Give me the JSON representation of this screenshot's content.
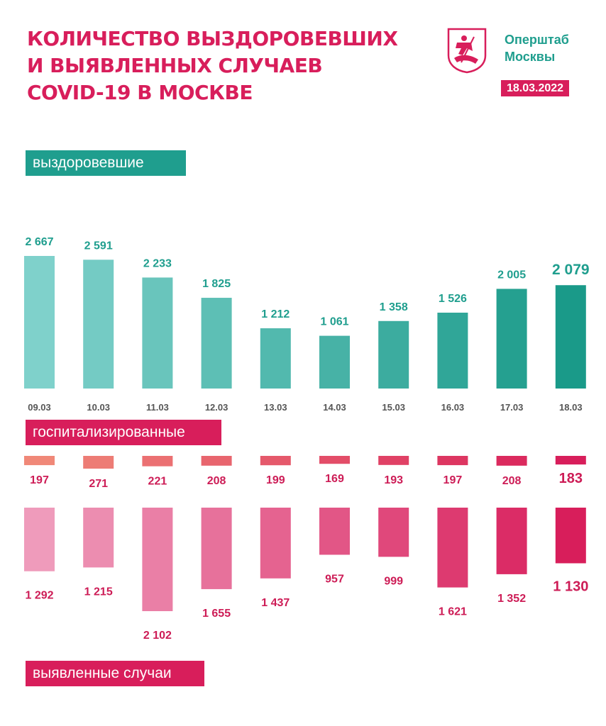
{
  "header": {
    "title_lines": [
      "КОЛИЧЕСТВО ВЫЗДОРОВЕВШИХ",
      "И ВЫЯВЛЕННЫХ СЛУЧАЕВ",
      "COVID-19 В МОСКВЕ"
    ],
    "org_lines": [
      "Оперштаб",
      "Москвы"
    ],
    "date": "18.03.2022",
    "logo_icon": "moscow-coat-of-arms-icon"
  },
  "sections": {
    "recovered": "выздоровевшие",
    "hospitalized": "госпитализированные",
    "cases": "выявленные случаи"
  },
  "colors": {
    "title": "#d81e5b",
    "teal_start": "#7fd1cb",
    "teal_end": "#1a9a89",
    "hosp_start": "#f08878",
    "hosp_end": "#d81e5b",
    "cases_start": "#ef9bbb",
    "cases_end": "#d81e5b",
    "teal_text": "#1f9e8e",
    "pink_text": "#cd1c56",
    "date_text": "#555555"
  },
  "chart_data": [
    {
      "type": "bar",
      "categories": [
        "09.03",
        "10.03",
        "11.03",
        "12.03",
        "13.03",
        "14.03",
        "15.03",
        "16.03",
        "17.03",
        "18.03"
      ],
      "series": [
        {
          "name": "выздоровевшие",
          "values": [
            2667,
            2591,
            2233,
            1825,
            1212,
            1061,
            1358,
            1526,
            2005,
            2079
          ]
        }
      ],
      "value_labels": [
        "2 667",
        "2 591",
        "2 233",
        "1 825",
        "1 212",
        "1 061",
        "1 358",
        "1 526",
        "2 005",
        "2 079"
      ]
    },
    {
      "type": "bar",
      "categories": [
        "09.03",
        "10.03",
        "11.03",
        "12.03",
        "13.03",
        "14.03",
        "15.03",
        "16.03",
        "17.03",
        "18.03"
      ],
      "series": [
        {
          "name": "госпитализированные",
          "values": [
            197,
            271,
            221,
            208,
            199,
            169,
            193,
            197,
            208,
            183
          ]
        }
      ],
      "value_labels": [
        "197",
        "271",
        "221",
        "208",
        "199",
        "169",
        "193",
        "197",
        "208",
        "183"
      ]
    },
    {
      "type": "bar",
      "categories": [
        "09.03",
        "10.03",
        "11.03",
        "12.03",
        "13.03",
        "14.03",
        "15.03",
        "16.03",
        "17.03",
        "18.03"
      ],
      "series": [
        {
          "name": "выявленные случаи",
          "values": [
            1292,
            1215,
            2102,
            1655,
            1437,
            957,
            999,
            1621,
            1352,
            1130
          ]
        }
      ],
      "value_labels": [
        "1 292",
        "1 215",
        "2 102",
        "1 655",
        "1 437",
        "957",
        "999",
        "1 621",
        "1 352",
        "1 130"
      ]
    }
  ]
}
